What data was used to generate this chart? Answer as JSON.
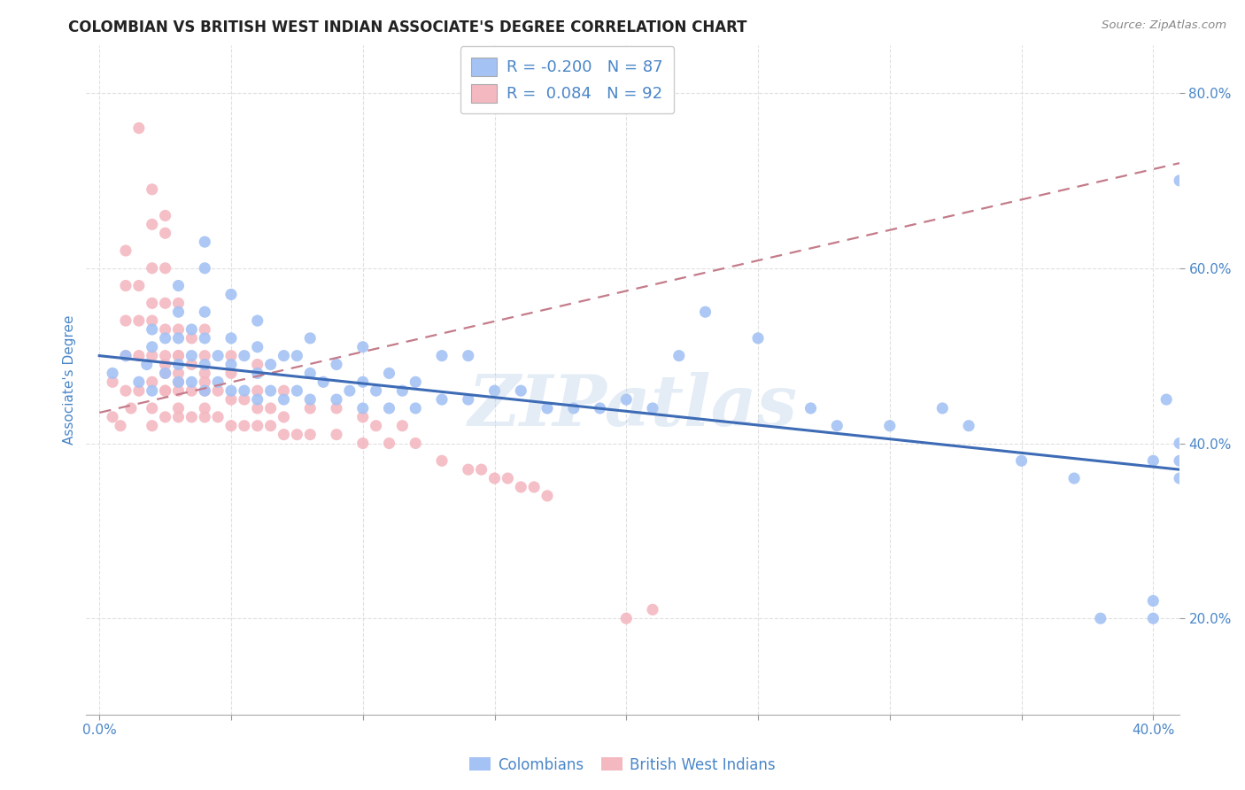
{
  "title": "COLOMBIAN VS BRITISH WEST INDIAN ASSOCIATE'S DEGREE CORRELATION CHART",
  "source": "Source: ZipAtlas.com",
  "ylabel": "Associate's Degree",
  "watermark": "ZIPatlas",
  "legend_blue_r": "-0.200",
  "legend_blue_n": "87",
  "legend_pink_r": "0.084",
  "legend_pink_n": "92",
  "legend_label_blue": "Colombians",
  "legend_label_pink": "British West Indians",
  "xlim": [
    -0.005,
    0.41
  ],
  "ylim": [
    0.09,
    0.855
  ],
  "x_ticks": [
    0.0,
    0.05,
    0.1,
    0.15,
    0.2,
    0.25,
    0.3,
    0.35,
    0.4
  ],
  "y_ticks": [
    0.2,
    0.4,
    0.6,
    0.8
  ],
  "blue_scatter_color": "#a4c2f4",
  "pink_scatter_color": "#f4b8c1",
  "blue_line_color": "#3d6bb5",
  "pink_line_color": "#c47b8a",
  "title_color": "#222222",
  "axis_label_color": "#4a86c8",
  "tick_color": "#4a86c8",
  "legend_text_color": "#4a86c8",
  "source_color": "#888888",
  "grid_color": "#dddddd",
  "blue_scatter_x": [
    0.005,
    0.01,
    0.015,
    0.018,
    0.02,
    0.02,
    0.02,
    0.025,
    0.025,
    0.03,
    0.03,
    0.03,
    0.03,
    0.03,
    0.035,
    0.035,
    0.035,
    0.04,
    0.04,
    0.04,
    0.04,
    0.04,
    0.04,
    0.045,
    0.045,
    0.05,
    0.05,
    0.05,
    0.05,
    0.055,
    0.055,
    0.06,
    0.06,
    0.06,
    0.06,
    0.065,
    0.065,
    0.07,
    0.07,
    0.075,
    0.075,
    0.08,
    0.08,
    0.08,
    0.085,
    0.09,
    0.09,
    0.095,
    0.1,
    0.1,
    0.1,
    0.105,
    0.11,
    0.11,
    0.115,
    0.12,
    0.12,
    0.13,
    0.13,
    0.14,
    0.14,
    0.15,
    0.16,
    0.17,
    0.18,
    0.19,
    0.2,
    0.21,
    0.22,
    0.23,
    0.25,
    0.27,
    0.28,
    0.3,
    0.32,
    0.33,
    0.35,
    0.37,
    0.38,
    0.4,
    0.4,
    0.4,
    0.405,
    0.41,
    0.41,
    0.41,
    0.41
  ],
  "blue_scatter_y": [
    0.48,
    0.5,
    0.47,
    0.49,
    0.46,
    0.51,
    0.53,
    0.48,
    0.52,
    0.47,
    0.49,
    0.52,
    0.55,
    0.58,
    0.47,
    0.5,
    0.53,
    0.46,
    0.49,
    0.52,
    0.55,
    0.6,
    0.63,
    0.47,
    0.5,
    0.46,
    0.49,
    0.52,
    0.57,
    0.46,
    0.5,
    0.45,
    0.48,
    0.51,
    0.54,
    0.46,
    0.49,
    0.45,
    0.5,
    0.46,
    0.5,
    0.45,
    0.48,
    0.52,
    0.47,
    0.45,
    0.49,
    0.46,
    0.44,
    0.47,
    0.51,
    0.46,
    0.44,
    0.48,
    0.46,
    0.44,
    0.47,
    0.45,
    0.5,
    0.45,
    0.5,
    0.46,
    0.46,
    0.44,
    0.44,
    0.44,
    0.45,
    0.44,
    0.5,
    0.55,
    0.52,
    0.44,
    0.42,
    0.42,
    0.44,
    0.42,
    0.38,
    0.36,
    0.2,
    0.38,
    0.2,
    0.22,
    0.45,
    0.36,
    0.38,
    0.4,
    0.7
  ],
  "pink_scatter_x": [
    0.005,
    0.005,
    0.008,
    0.01,
    0.01,
    0.01,
    0.01,
    0.01,
    0.012,
    0.015,
    0.015,
    0.015,
    0.015,
    0.015,
    0.02,
    0.02,
    0.02,
    0.02,
    0.02,
    0.02,
    0.02,
    0.02,
    0.02,
    0.025,
    0.025,
    0.025,
    0.025,
    0.025,
    0.025,
    0.025,
    0.025,
    0.025,
    0.025,
    0.025,
    0.03,
    0.03,
    0.03,
    0.03,
    0.03,
    0.03,
    0.03,
    0.03,
    0.03,
    0.035,
    0.035,
    0.035,
    0.035,
    0.04,
    0.04,
    0.04,
    0.04,
    0.04,
    0.04,
    0.04,
    0.045,
    0.045,
    0.05,
    0.05,
    0.05,
    0.05,
    0.055,
    0.055,
    0.06,
    0.06,
    0.06,
    0.06,
    0.065,
    0.065,
    0.07,
    0.07,
    0.07,
    0.075,
    0.08,
    0.08,
    0.09,
    0.09,
    0.1,
    0.1,
    0.105,
    0.11,
    0.115,
    0.12,
    0.13,
    0.14,
    0.145,
    0.15,
    0.155,
    0.16,
    0.165,
    0.17,
    0.2,
    0.21
  ],
  "pink_scatter_y": [
    0.43,
    0.47,
    0.42,
    0.46,
    0.5,
    0.54,
    0.58,
    0.62,
    0.44,
    0.46,
    0.5,
    0.54,
    0.58,
    0.76,
    0.44,
    0.47,
    0.5,
    0.54,
    0.56,
    0.6,
    0.65,
    0.69,
    0.42,
    0.46,
    0.48,
    0.5,
    0.53,
    0.56,
    0.6,
    0.64,
    0.43,
    0.46,
    0.49,
    0.66,
    0.43,
    0.46,
    0.48,
    0.5,
    0.53,
    0.56,
    0.44,
    0.47,
    0.5,
    0.43,
    0.46,
    0.49,
    0.52,
    0.43,
    0.46,
    0.48,
    0.5,
    0.53,
    0.44,
    0.47,
    0.43,
    0.46,
    0.42,
    0.45,
    0.48,
    0.5,
    0.42,
    0.45,
    0.42,
    0.44,
    0.46,
    0.49,
    0.42,
    0.44,
    0.41,
    0.43,
    0.46,
    0.41,
    0.41,
    0.44,
    0.41,
    0.44,
    0.4,
    0.43,
    0.42,
    0.4,
    0.42,
    0.4,
    0.38,
    0.37,
    0.37,
    0.36,
    0.36,
    0.35,
    0.35,
    0.34,
    0.2,
    0.21
  ],
  "blue_trend_x": [
    0.0,
    0.41
  ],
  "blue_trend_y": [
    0.5,
    0.37
  ],
  "pink_trend_x": [
    0.0,
    0.41
  ],
  "pink_trend_y": [
    0.435,
    0.72
  ],
  "figsize": [
    14.06,
    8.92
  ],
  "dpi": 100
}
